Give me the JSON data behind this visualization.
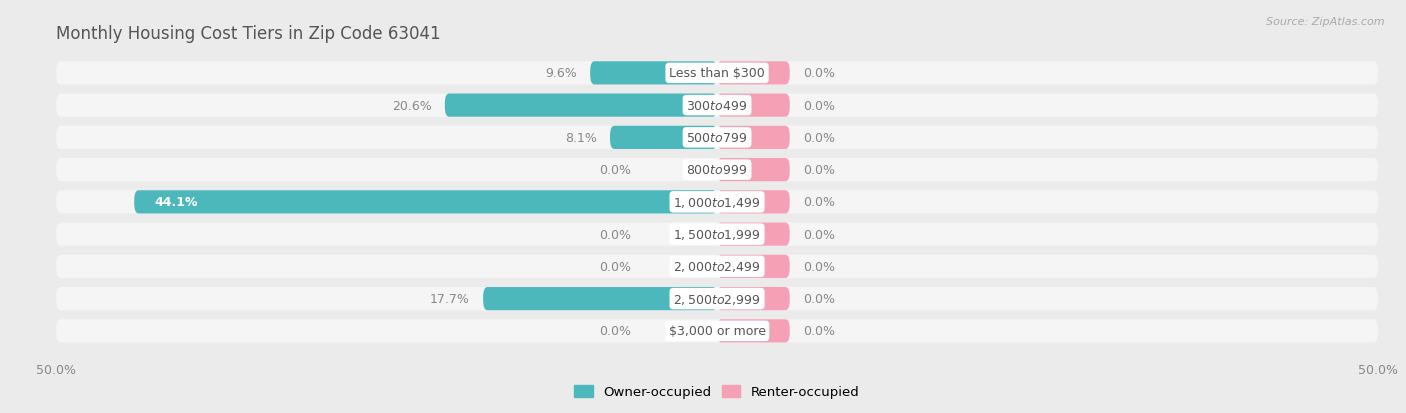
{
  "title": "Monthly Housing Cost Tiers in Zip Code 63041",
  "source": "Source: ZipAtlas.com",
  "categories": [
    "Less than $300",
    "$300 to $499",
    "$500 to $799",
    "$800 to $999",
    "$1,000 to $1,499",
    "$1,500 to $1,999",
    "$2,000 to $2,499",
    "$2,500 to $2,999",
    "$3,000 or more"
  ],
  "owner_values": [
    9.6,
    20.6,
    8.1,
    0.0,
    44.1,
    0.0,
    0.0,
    17.7,
    0.0
  ],
  "renter_values": [
    0.0,
    0.0,
    0.0,
    0.0,
    0.0,
    0.0,
    0.0,
    0.0,
    0.0
  ],
  "owner_color": "#4db8bc",
  "renter_color": "#f5a0b5",
  "owner_label": "Owner-occupied",
  "renter_label": "Renter-occupied",
  "axis_min": -50.0,
  "axis_max": 50.0,
  "bg_color": "#ebebeb",
  "row_bg_color": "#f5f5f5",
  "bar_height": 0.72,
  "title_color": "#555555",
  "label_color": "#888888",
  "value_label_fontsize": 9,
  "category_fontsize": 9,
  "title_fontsize": 12,
  "renter_stub": 5.5
}
